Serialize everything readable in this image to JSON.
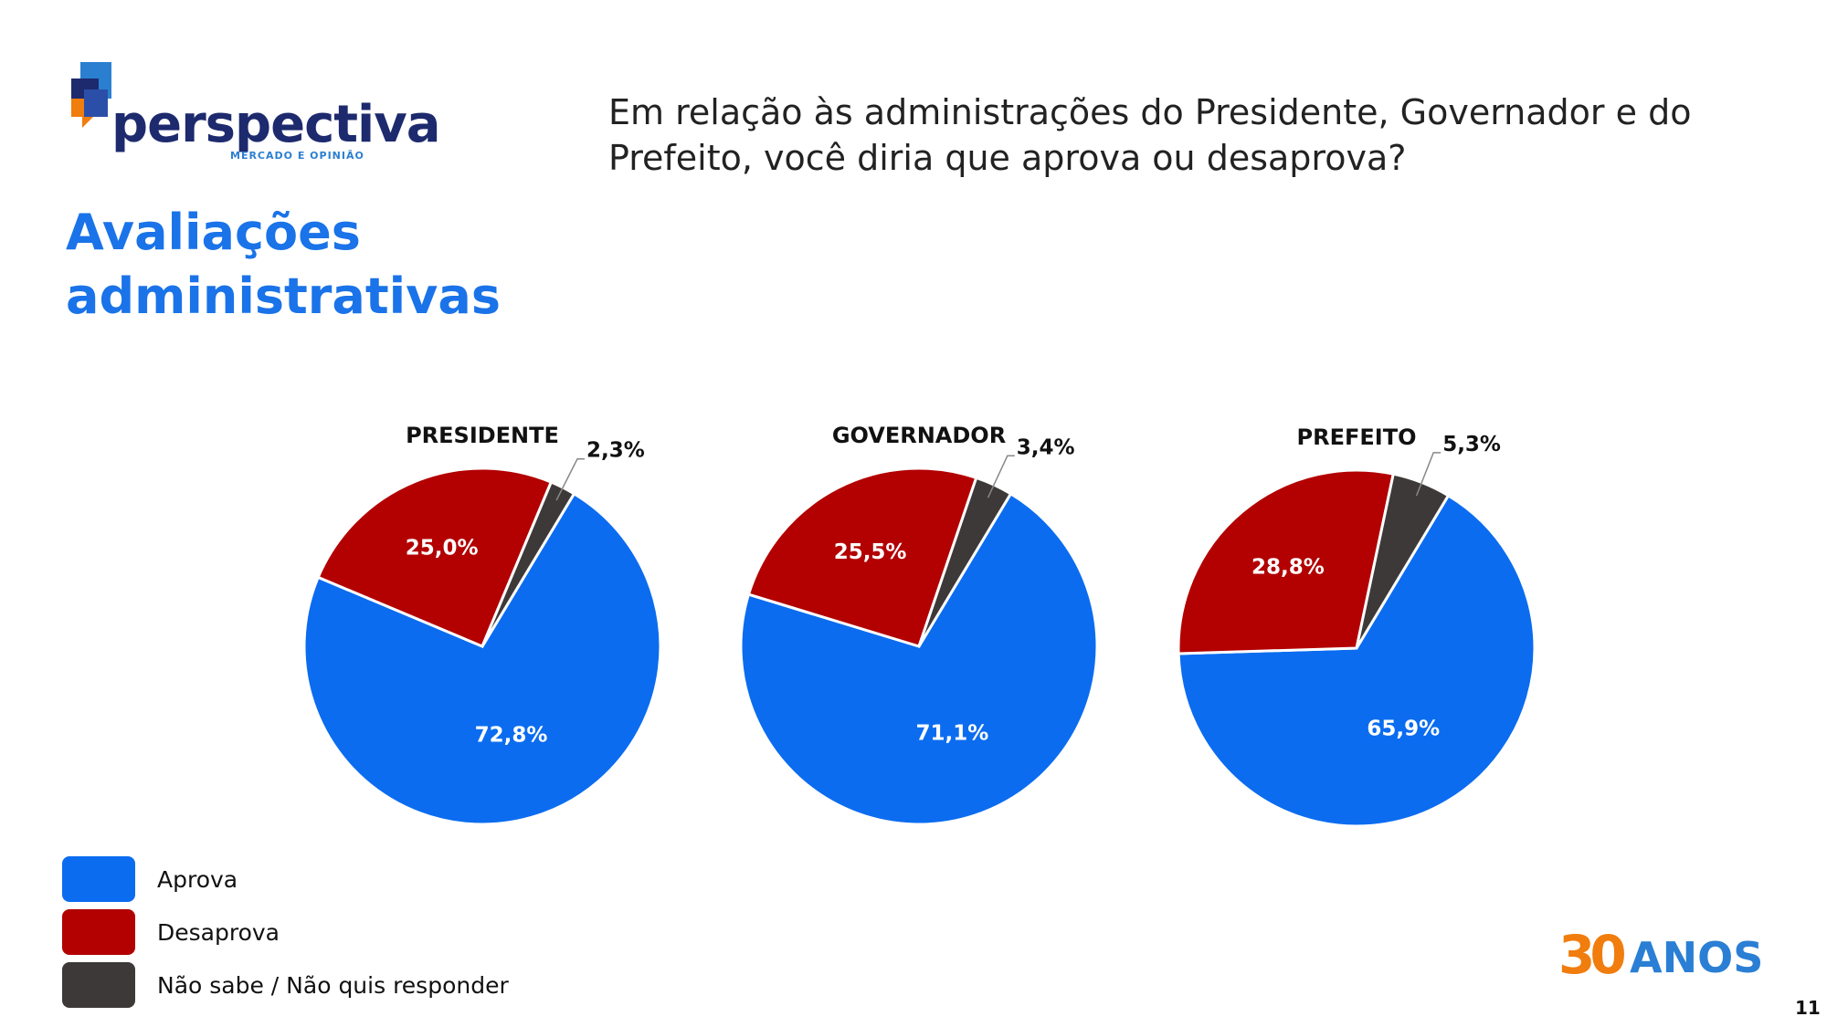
{
  "logo": {
    "word": "perspectiva",
    "subtitle": "MERCADO E OPINIÃO"
  },
  "title": "Avaliações administrativas",
  "question": "Em relação às administrações do Presidente, Governador e do Prefeito, você diria que aprova ou desaprova?",
  "legend": [
    {
      "label": "Aprova",
      "color": "#0b6cf0"
    },
    {
      "label": "Desaprova",
      "color": "#b30000"
    },
    {
      "label": "Não sabe / Não quis responder",
      "color": "#3d3938"
    }
  ],
  "chart_data": [
    {
      "type": "pie",
      "title": "PRESIDENTE",
      "categories": [
        "Aprova",
        "Desaprova",
        "Não sabe / Não quis responder"
      ],
      "values": [
        72.8,
        25.0,
        2.3
      ],
      "labels": [
        "72,8%",
        "25,0%",
        "2,3%"
      ]
    },
    {
      "type": "pie",
      "title": "GOVERNADOR",
      "categories": [
        "Aprova",
        "Desaprova",
        "Não sabe / Não quis responder"
      ],
      "values": [
        71.1,
        25.5,
        3.4
      ],
      "labels": [
        "71,1%",
        "25,5%",
        "3,4%"
      ]
    },
    {
      "type": "pie",
      "title": "PREFEITO",
      "categories": [
        "Aprova",
        "Desaprova",
        "Não sabe / Não quis responder"
      ],
      "values": [
        65.9,
        28.8,
        5.3
      ],
      "labels": [
        "65,9%",
        "28,8%",
        "5,3%"
      ]
    }
  ],
  "badge": {
    "number": "30",
    "word": "ANOS"
  },
  "page_number": "11"
}
